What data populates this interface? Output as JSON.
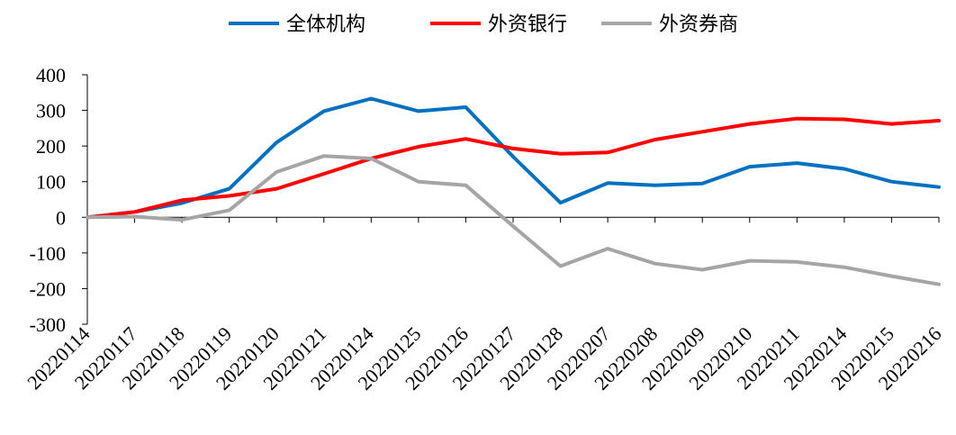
{
  "chart_data": {
    "type": "line",
    "title": "",
    "xlabel": "",
    "ylabel": "",
    "ylim": [
      -300,
      400
    ],
    "yticks": [
      -300,
      -200,
      -100,
      0,
      100,
      200,
      300,
      400
    ],
    "ytick_labels": [
      "-300",
      "-200",
      "-100",
      "0",
      "100",
      "200",
      "300",
      "400"
    ],
    "grid": false,
    "legend_position": "top-center",
    "categories": [
      "20220114",
      "20220117",
      "20220118",
      "20220119",
      "20220120",
      "20220121",
      "20220124",
      "20220125",
      "20220126",
      "20220127",
      "20220128",
      "20220207",
      "20220208",
      "20220209",
      "20220210",
      "20220211",
      "20220214",
      "20220215",
      "20220216"
    ],
    "series": [
      {
        "name": "全体机构",
        "color": "#0070c0",
        "values": [
          0,
          15,
          40,
          80,
          210,
          298,
          333,
          298,
          309,
          170,
          41,
          96,
          90,
          95,
          142,
          152,
          136,
          100,
          85
        ]
      },
      {
        "name": "外资银行",
        "color": "#ff0000",
        "values": [
          0,
          15,
          48,
          60,
          80,
          122,
          165,
          198,
          220,
          193,
          178,
          182,
          218,
          240,
          262,
          277,
          275,
          262,
          271
        ]
      },
      {
        "name": "外资券商",
        "color": "#a5a5a5",
        "values": [
          0,
          2,
          -7,
          20,
          127,
          172,
          165,
          100,
          90,
          -25,
          -137,
          -88,
          -130,
          -147,
          -122,
          -125,
          -140,
          -165,
          -188
        ]
      }
    ]
  }
}
